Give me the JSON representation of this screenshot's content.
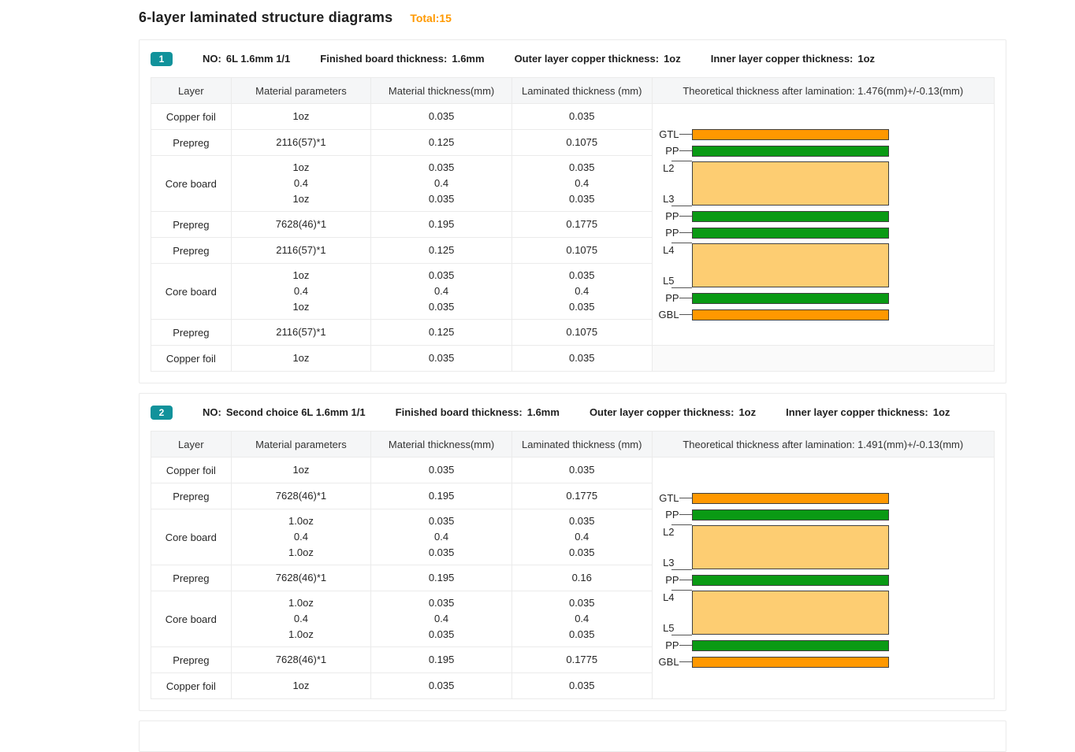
{
  "page": {
    "title": "6-layer laminated structure diagrams",
    "total_label": "Total:15"
  },
  "colors": {
    "badge": "#11929B",
    "total": "#FF9900",
    "foil": "#FF9800",
    "pp": "#0A9A14",
    "core": "#FDCD72",
    "bar_border": "#404040"
  },
  "table_headers": [
    "Layer",
    "Material parameters",
    "Material thickness(mm)",
    "Laminated thickness (mm)"
  ],
  "panels": [
    {
      "badge": "1",
      "meta": [
        {
          "label": "NO:",
          "value": "6L 1.6mm 1/1"
        },
        {
          "label": "Finished board thickness:",
          "value": "1.6mm"
        },
        {
          "label": "Outer layer copper thickness:",
          "value": "1oz"
        },
        {
          "label": "Inner layer copper thickness:",
          "value": "1oz"
        }
      ],
      "diagram_header": "Theoretical thickness after lamination: 1.476(mm)+/-0.13(mm)",
      "rows": [
        {
          "layer": "Copper foil",
          "params": [
            "1oz"
          ],
          "material": [
            "0.035"
          ],
          "laminated": [
            "0.035"
          ]
        },
        {
          "layer": "Prepreg",
          "params": [
            "2116(57)*1"
          ],
          "material": [
            "0.125"
          ],
          "laminated": [
            "0.1075"
          ]
        },
        {
          "layer": "Core board",
          "params": [
            "1oz",
            "0.4",
            "1oz"
          ],
          "material": [
            "0.035",
            "0.4",
            "0.035"
          ],
          "laminated": [
            "0.035",
            "0.4",
            "0.035"
          ]
        },
        {
          "layer": "Prepreg",
          "params": [
            "7628(46)*1"
          ],
          "material": [
            "0.195"
          ],
          "laminated": [
            "0.1775"
          ]
        },
        {
          "layer": "Prepreg",
          "params": [
            "2116(57)*1"
          ],
          "material": [
            "0.125"
          ],
          "laminated": [
            "0.1075"
          ]
        },
        {
          "layer": "Core board",
          "params": [
            "1oz",
            "0.4",
            "1oz"
          ],
          "material": [
            "0.035",
            "0.4",
            "0.035"
          ],
          "laminated": [
            "0.035",
            "0.4",
            "0.035"
          ]
        },
        {
          "layer": "Prepreg",
          "params": [
            "2116(57)*1"
          ],
          "material": [
            "0.125"
          ],
          "laminated": [
            "0.1075"
          ]
        },
        {
          "layer": "Copper foil",
          "params": [
            "1oz"
          ],
          "material": [
            "0.035"
          ],
          "laminated": [
            "0.035"
          ]
        }
      ],
      "diagram_rowspan": 7,
      "has_bottom_filler": true,
      "stack_top_margin": 31,
      "stack": [
        {
          "kind": "foil",
          "labels": [
            "GTL"
          ]
        },
        {
          "kind": "pp",
          "labels": [
            "PP"
          ]
        },
        {
          "kind": "core",
          "labels": [
            "L2",
            "L3"
          ]
        },
        {
          "kind": "pp",
          "labels": [
            "PP"
          ]
        },
        {
          "kind": "pp",
          "labels": [
            "PP"
          ]
        },
        {
          "kind": "core",
          "labels": [
            "L4",
            "L5"
          ]
        },
        {
          "kind": "pp",
          "labels": [
            "PP"
          ]
        },
        {
          "kind": "foil",
          "labels": [
            "GBL"
          ]
        }
      ]
    },
    {
      "badge": "2",
      "meta": [
        {
          "label": "NO:",
          "value": "Second choice 6L 1.6mm 1/1"
        },
        {
          "label": "Finished board thickness:",
          "value": "1.6mm"
        },
        {
          "label": "Outer layer copper thickness:",
          "value": "1oz"
        },
        {
          "label": "Inner layer copper thickness:",
          "value": "1oz"
        }
      ],
      "diagram_header": "Theoretical thickness after lamination: 1.491(mm)+/-0.13(mm)",
      "rows": [
        {
          "layer": "Copper foil",
          "params": [
            "1oz"
          ],
          "material": [
            "0.035"
          ],
          "laminated": [
            "0.035"
          ]
        },
        {
          "layer": "Prepreg",
          "params": [
            "7628(46)*1"
          ],
          "material": [
            "0.195"
          ],
          "laminated": [
            "0.1775"
          ]
        },
        {
          "layer": "Core board",
          "params": [
            "1.0oz",
            "0.4",
            "1.0oz"
          ],
          "material": [
            "0.035",
            "0.4",
            "0.035"
          ],
          "laminated": [
            "0.035",
            "0.4",
            "0.035"
          ]
        },
        {
          "layer": "Prepreg",
          "params": [
            "7628(46)*1"
          ],
          "material": [
            "0.195"
          ],
          "laminated": [
            "0.16"
          ]
        },
        {
          "layer": "Core board",
          "params": [
            "1.0oz",
            "0.4",
            "1.0oz"
          ],
          "material": [
            "0.035",
            "0.4",
            "0.035"
          ],
          "laminated": [
            "0.035",
            "0.4",
            "0.035"
          ]
        },
        {
          "layer": "Prepreg",
          "params": [
            "7628(46)*1"
          ],
          "material": [
            "0.195"
          ],
          "laminated": [
            "0.1775"
          ]
        },
        {
          "layer": "Copper foil",
          "params": [
            "1oz"
          ],
          "material": [
            "0.035"
          ],
          "laminated": [
            "0.035"
          ]
        }
      ],
      "diagram_rowspan": 7,
      "has_bottom_filler": false,
      "stack_top_margin": 44,
      "stack": [
        {
          "kind": "foil",
          "labels": [
            "GTL"
          ]
        },
        {
          "kind": "pp",
          "labels": [
            "PP"
          ]
        },
        {
          "kind": "core",
          "labels": [
            "L2",
            "L3"
          ]
        },
        {
          "kind": "pp",
          "labels": [
            "PP"
          ]
        },
        {
          "kind": "core",
          "labels": [
            "L4",
            "L5"
          ]
        },
        {
          "kind": "pp",
          "labels": [
            "PP"
          ]
        },
        {
          "kind": "foil",
          "labels": [
            "GBL"
          ]
        }
      ]
    }
  ]
}
